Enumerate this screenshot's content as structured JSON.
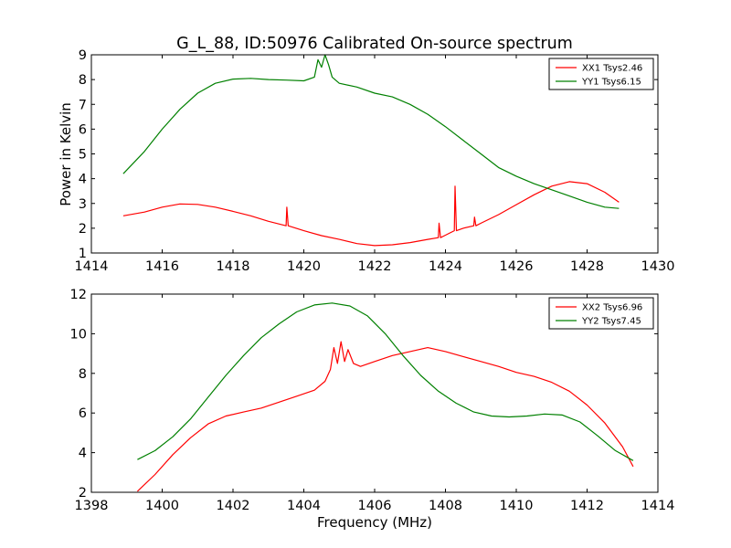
{
  "figure": {
    "title": "G_L_88, ID:50976 Calibrated On-source spectrum",
    "xlabel": "Frequency (MHz)",
    "ylabel": "Power in Kelvin"
  },
  "colors": {
    "red": "#ff0000",
    "green": "#008000"
  },
  "chart_data": [
    {
      "type": "line",
      "title": "G_L_88, ID:50976 Calibrated On-source spectrum",
      "ylabel": "Power in Kelvin",
      "xlabel": "",
      "xlim": [
        1414,
        1430
      ],
      "ylim": [
        1,
        9
      ],
      "xticks": [
        "1414",
        "1416",
        "1418",
        "1420",
        "1422",
        "1424",
        "1426",
        "1428",
        "1430"
      ],
      "yticks": [
        "1",
        "2",
        "3",
        "4",
        "5",
        "6",
        "7",
        "8",
        "9"
      ],
      "legend_position": "top-right",
      "series": [
        {
          "name": "XX1 Tsys2.46",
          "color": "#ff0000",
          "x": [
            1414.9,
            1415.5,
            1416.0,
            1416.5,
            1417.0,
            1417.5,
            1418.0,
            1418.5,
            1419.0,
            1419.5,
            1419.52,
            1419.56,
            1420.0,
            1420.5,
            1421.0,
            1421.5,
            1422.0,
            1422.5,
            1423.0,
            1423.5,
            1423.8,
            1423.82,
            1423.86,
            1424.0,
            1424.25,
            1424.27,
            1424.31,
            1424.5,
            1424.8,
            1424.82,
            1424.86,
            1425.0,
            1425.5,
            1426.0,
            1426.5,
            1427.0,
            1427.5,
            1428.0,
            1428.5,
            1428.9
          ],
          "values": [
            2.5,
            2.65,
            2.85,
            2.98,
            2.96,
            2.85,
            2.68,
            2.5,
            2.28,
            2.1,
            2.85,
            2.1,
            1.9,
            1.7,
            1.55,
            1.38,
            1.3,
            1.33,
            1.42,
            1.55,
            1.62,
            2.2,
            1.62,
            1.72,
            1.9,
            3.7,
            1.9,
            2.0,
            2.1,
            2.45,
            2.1,
            2.2,
            2.55,
            2.95,
            3.35,
            3.7,
            3.88,
            3.8,
            3.45,
            3.05
          ]
        },
        {
          "name": "YY1 Tsys6.15",
          "color": "#008000",
          "x": [
            1414.9,
            1415.5,
            1416.0,
            1416.5,
            1417.0,
            1417.5,
            1418.0,
            1418.5,
            1419.0,
            1419.5,
            1420.0,
            1420.3,
            1420.4,
            1420.5,
            1420.6,
            1420.7,
            1420.8,
            1421.0,
            1421.5,
            1422.0,
            1422.5,
            1423.0,
            1423.5,
            1424.0,
            1424.5,
            1425.0,
            1425.5,
            1426.0,
            1426.5,
            1427.0,
            1427.5,
            1428.0,
            1428.5,
            1428.9
          ],
          "values": [
            4.2,
            5.1,
            6.0,
            6.8,
            7.45,
            7.85,
            8.02,
            8.05,
            8.0,
            7.98,
            7.95,
            8.1,
            8.8,
            8.5,
            9.0,
            8.6,
            8.1,
            7.85,
            7.7,
            7.45,
            7.3,
            7.0,
            6.6,
            6.1,
            5.55,
            5.0,
            4.45,
            4.1,
            3.8,
            3.55,
            3.3,
            3.05,
            2.85,
            2.8
          ]
        }
      ]
    },
    {
      "type": "line",
      "title": "",
      "ylabel": "",
      "xlabel": "Frequency (MHz)",
      "xlim": [
        1398,
        1414
      ],
      "ylim": [
        2,
        12
      ],
      "xticks": [
        "1398",
        "1400",
        "1402",
        "1404",
        "1406",
        "1408",
        "1410",
        "1412",
        "1414"
      ],
      "yticks": [
        "2",
        "4",
        "6",
        "8",
        "10",
        "12"
      ],
      "legend_position": "top-right",
      "series": [
        {
          "name": "XX2 Tsys6.96",
          "color": "#ff0000",
          "x": [
            1399.3,
            1399.8,
            1400.3,
            1400.8,
            1401.3,
            1401.8,
            1402.3,
            1402.8,
            1403.3,
            1403.8,
            1404.3,
            1404.6,
            1404.75,
            1404.85,
            1404.95,
            1405.05,
            1405.15,
            1405.25,
            1405.4,
            1405.6,
            1406.0,
            1406.5,
            1407.0,
            1407.5,
            1408.0,
            1408.5,
            1409.0,
            1409.5,
            1410.0,
            1410.5,
            1411.0,
            1411.5,
            1412.0,
            1412.5,
            1413.0,
            1413.3
          ],
          "values": [
            2.05,
            2.9,
            3.9,
            4.75,
            5.45,
            5.85,
            6.05,
            6.25,
            6.55,
            6.85,
            7.15,
            7.6,
            8.2,
            9.3,
            8.5,
            9.6,
            8.6,
            9.2,
            8.5,
            8.35,
            8.6,
            8.9,
            9.1,
            9.3,
            9.1,
            8.85,
            8.6,
            8.35,
            8.05,
            7.85,
            7.55,
            7.1,
            6.4,
            5.5,
            4.3,
            3.3
          ]
        },
        {
          "name": "YY2 Tsys7.45",
          "color": "#008000",
          "x": [
            1399.3,
            1399.8,
            1400.3,
            1400.8,
            1401.3,
            1401.8,
            1402.3,
            1402.8,
            1403.3,
            1403.8,
            1404.3,
            1404.8,
            1405.3,
            1405.8,
            1406.3,
            1406.8,
            1407.3,
            1407.8,
            1408.3,
            1408.8,
            1409.3,
            1409.8,
            1410.3,
            1410.8,
            1411.3,
            1411.8,
            1412.3,
            1412.8,
            1413.3
          ],
          "values": [
            3.65,
            4.1,
            4.8,
            5.7,
            6.8,
            7.9,
            8.9,
            9.8,
            10.5,
            11.1,
            11.45,
            11.55,
            11.4,
            10.9,
            10.0,
            8.9,
            7.9,
            7.1,
            6.5,
            6.05,
            5.85,
            5.8,
            5.85,
            5.95,
            5.9,
            5.55,
            4.85,
            4.1,
            3.6
          ]
        }
      ]
    }
  ]
}
